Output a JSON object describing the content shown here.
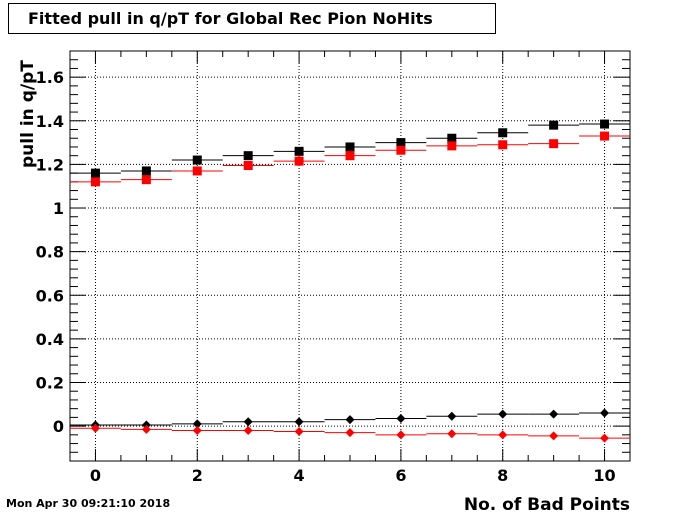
{
  "chart_data": {
    "type": "scatter",
    "title": "Fitted pull in q/pT for Global Rec Pion NoHits",
    "xlabel": "No. of Bad Points",
    "ylabel": "pull in q/pT",
    "xlim": [
      -0.5,
      10.5
    ],
    "ylim": [
      -0.16,
      1.72
    ],
    "grid": true,
    "x_ticks": [
      "0",
      "2",
      "4",
      "6",
      "8",
      "10"
    ],
    "y_ticks": [
      "0",
      "0.2",
      "0.4",
      "0.6",
      "0.8",
      "1",
      "1.2",
      "1.4",
      "1.6"
    ],
    "x": [
      0,
      1,
      2,
      3,
      4,
      5,
      6,
      7,
      8,
      9,
      10
    ],
    "series": [
      {
        "marker": "square",
        "color": "#000000",
        "values": [
          1.16,
          1.17,
          1.22,
          1.24,
          1.26,
          1.28,
          1.3,
          1.32,
          1.345,
          1.38,
          1.385
        ]
      },
      {
        "marker": "square",
        "color": "#ff0000",
        "values": [
          1.12,
          1.13,
          1.17,
          1.195,
          1.215,
          1.24,
          1.265,
          1.285,
          1.29,
          1.295,
          1.33
        ]
      },
      {
        "marker": "diamond",
        "color": "#000000",
        "values": [
          0.005,
          0.005,
          0.01,
          0.02,
          0.02,
          0.03,
          0.035,
          0.045,
          0.055,
          0.055,
          0.06
        ]
      },
      {
        "marker": "diamond",
        "color": "#ff0000",
        "values": [
          -0.01,
          -0.015,
          -0.02,
          -0.02,
          -0.025,
          -0.03,
          -0.04,
          -0.035,
          -0.04,
          -0.045,
          -0.055
        ]
      }
    ]
  },
  "timestamp": "Mon Apr 30 09:21:10 2018"
}
